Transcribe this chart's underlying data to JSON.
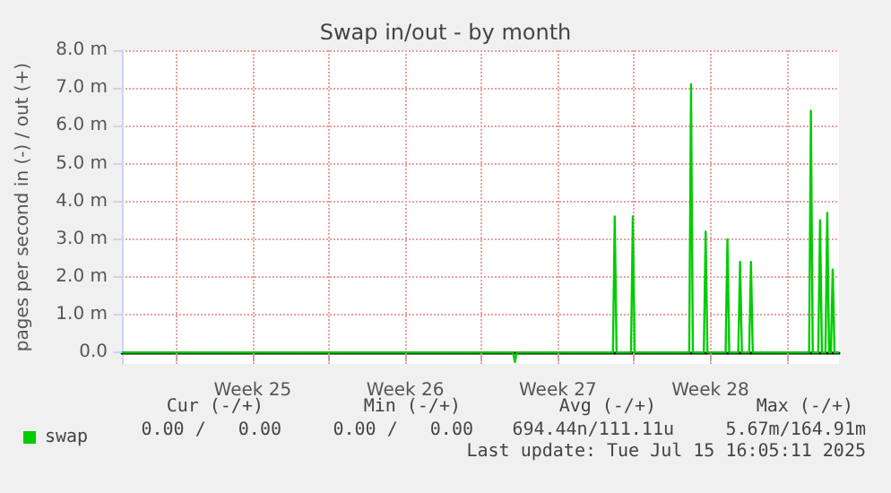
{
  "chart_data": {
    "type": "line",
    "title": "Swap in/out - by month",
    "ylabel": "pages per second in (-) / out (+)",
    "x": [
      "2025-06-13T12:00",
      "2025-07-01T10:45",
      "2025-07-01T12:45",
      "2025-07-01T14:45",
      "2025-07-06T00:40",
      "2025-07-06T02:40",
      "2025-07-06T04:40",
      "2025-07-06T20:35",
      "2025-07-06T22:35",
      "2025-07-07T00:35",
      "2025-07-09T12:40",
      "2025-07-09T14:40",
      "2025-07-09T16:40",
      "2025-07-10T04:45",
      "2025-07-10T06:45",
      "2025-07-10T08:45",
      "2025-07-11T04:45",
      "2025-07-11T06:45",
      "2025-07-11T08:45",
      "2025-07-11T18:40",
      "2025-07-11T20:40",
      "2025-07-11T22:40",
      "2025-07-12T06:40",
      "2025-07-12T08:40",
      "2025-07-12T10:40",
      "2025-07-15T00:40",
      "2025-07-15T02:40",
      "2025-07-15T04:40",
      "2025-07-15T10:45",
      "2025-07-15T12:45",
      "2025-07-15T14:45",
      "2025-07-15T18:40",
      "2025-07-15T20:40",
      "2025-07-15T22:40",
      "2025-07-16T00:40",
      "2025-07-16T02:40",
      "2025-07-16T04:40",
      "2025-07-16T09:36"
    ],
    "series": [
      {
        "name": "swap",
        "color": "#00cc00",
        "values": [
          0,
          0,
          -0.25,
          0,
          0,
          3.6,
          0,
          0,
          3.6,
          0,
          0,
          7.1,
          0,
          0,
          3.2,
          0,
          0,
          3.0,
          0,
          0,
          2.4,
          0,
          0,
          2.4,
          0,
          0,
          6.4,
          0,
          0,
          3.5,
          0,
          0,
          3.7,
          0,
          0,
          2.2,
          0,
          0
        ]
      }
    ],
    "xlim": [
      "2025-06-13T12:00",
      "2025-07-16T09:36"
    ],
    "xticks": [
      {
        "value": "2025-06-16",
        "label": null
      },
      {
        "value": "2025-06-19T12:00",
        "label": "Week 25"
      },
      {
        "value": "2025-06-23",
        "label": null
      },
      {
        "value": "2025-06-26T12:00",
        "label": "Week 26"
      },
      {
        "value": "2025-06-30",
        "label": null
      },
      {
        "value": "2025-07-03T12:00",
        "label": "Week 27"
      },
      {
        "value": "2025-07-07",
        "label": null
      },
      {
        "value": "2025-07-10T12:00",
        "label": "Week 28"
      },
      {
        "value": "2025-07-14",
        "label": null
      }
    ],
    "ylim": [
      -0.3,
      8
    ],
    "yticks": [
      {
        "value": 0,
        "label": "0.0"
      },
      {
        "value": 1,
        "label": "1.0 m"
      },
      {
        "value": 2,
        "label": "2.0 m"
      },
      {
        "value": 3,
        "label": "3.0 m"
      },
      {
        "value": 4,
        "label": "4.0 m"
      },
      {
        "value": 5,
        "label": "5.0 m"
      },
      {
        "value": 6,
        "label": "6.0 m"
      },
      {
        "value": 7,
        "label": "7.0 m"
      },
      {
        "value": 8,
        "label": "8.0 m"
      }
    ],
    "grid": true,
    "legend": "bottom left",
    "marker": "none",
    "line_style": "solid",
    "annotations": [
      "Cur (-/+)",
      "Min (-/+)",
      "Avg (-/+)",
      "Max (-/+)",
      "0.00 /   0.00",
      "0.00 /   0.00",
      "694.44n/111.11u",
      "5.67m/164.91m",
      "Last update: Tue Jul 15 16:05:11 2025"
    ]
  }
}
